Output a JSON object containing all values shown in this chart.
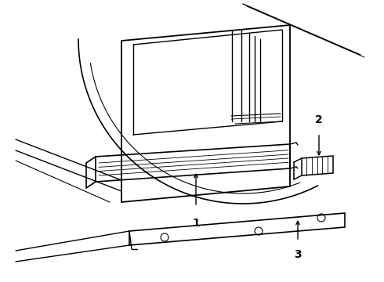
{
  "background_color": "#ffffff",
  "line_color": "#000000",
  "figure_width": 4.9,
  "figure_height": 3.6,
  "dpi": 100
}
